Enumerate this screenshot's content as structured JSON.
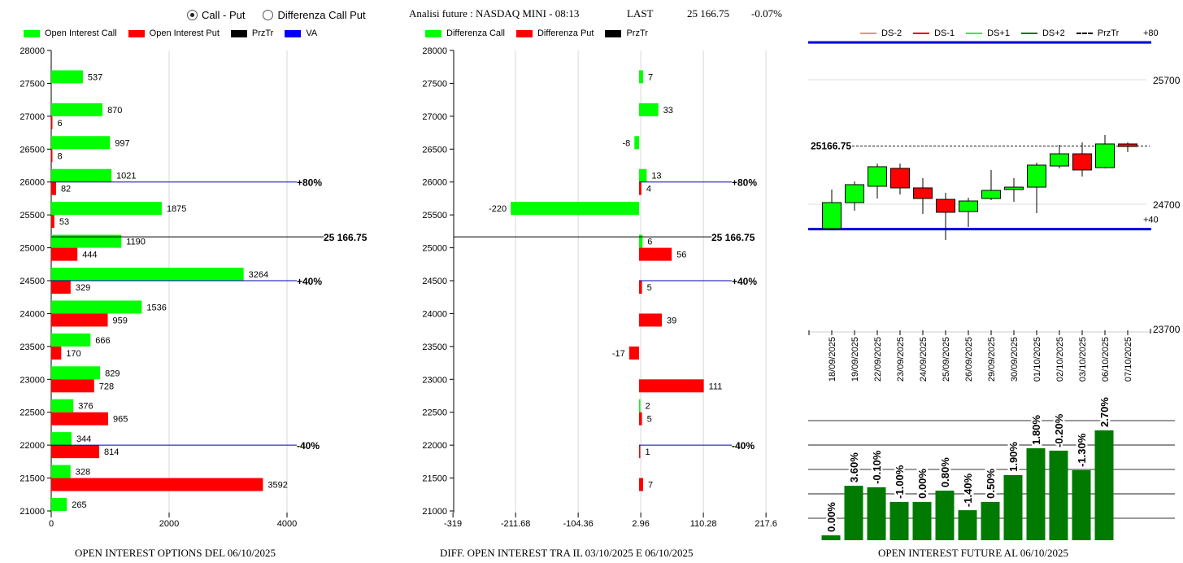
{
  "header": {
    "radio_options": [
      {
        "label": "Call - Put",
        "selected": true
      },
      {
        "label": "Differenza Call Put",
        "selected": false
      }
    ],
    "title": "Analisi future : NASDAQ MINI - 08:13",
    "last_label": "LAST",
    "last_value": "25 166.75",
    "change": "-0.07%"
  },
  "colors": {
    "call": "#00ff00",
    "put": "#ff0000",
    "prztr": "#000000",
    "va": "#0000ff",
    "candle_up": "#00ff00",
    "candle_down": "#ff0000",
    "oi_bar": "#007a00"
  },
  "legends": {
    "left": [
      "Open Interest Call",
      "Open Interest Put",
      "PrzTr",
      "VA"
    ],
    "middle": [
      "Differenza Call",
      "Differenza Put",
      "PrzTr"
    ],
    "right": [
      "DS-2",
      "DS-1",
      "DS+1",
      "DS+2",
      "PrzTr"
    ]
  },
  "chart_data": [
    {
      "type": "bar",
      "orientation": "horizontal",
      "title": "OPEN INTEREST OPTIONS DEL 06/10/2025",
      "y_ticks": [
        "28000",
        "27500",
        "27000",
        "26500",
        "26000",
        "25500",
        "25000",
        "24500",
        "24000",
        "23500",
        "23000",
        "22500",
        "22000",
        "21500",
        "21000"
      ],
      "x_ticks": [
        "0",
        "2000",
        "4000"
      ],
      "xlim": [
        0,
        4600
      ],
      "ylim": [
        21000,
        28000
      ],
      "grid": "vertical",
      "strikes": [
        27500,
        27000,
        26500,
        26000,
        25500,
        25000,
        24500,
        24000,
        23500,
        23000,
        22500,
        22000,
        21500,
        21000
      ],
      "series": [
        {
          "name": "Open Interest Call",
          "values": [
            537,
            870,
            997,
            1021,
            1875,
            1190,
            3264,
            1536,
            666,
            829,
            376,
            344,
            328,
            265
          ]
        },
        {
          "name": "Open Interest Put",
          "values": [
            null,
            6,
            8,
            82,
            53,
            444,
            329,
            959,
            170,
            728,
            965,
            814,
            3592,
            null
          ]
        }
      ],
      "prztr": {
        "price": 25166.75,
        "label": "25 166.75"
      },
      "va_lines": [
        {
          "price": 26000,
          "label": "+80%"
        },
        {
          "price": 24500,
          "label": "+40%"
        },
        {
          "price": 22000,
          "label": "-40%"
        }
      ]
    },
    {
      "type": "bar",
      "orientation": "horizontal",
      "title": "DIFF. OPEN INTEREST TRA IL 03/10/2025 E 06/10/2025",
      "y_ticks": [
        "28000",
        "27500",
        "27000",
        "26500",
        "26000",
        "25500",
        "25000",
        "24500",
        "24000",
        "23500",
        "23000",
        "22500",
        "22000",
        "21500",
        "21000"
      ],
      "x_ticks": [
        "-319",
        "-211.68",
        "-104.36",
        "2.96",
        "110.28",
        "217.6"
      ],
      "xlim": [
        -319,
        235
      ],
      "ylim": [
        21000,
        28000
      ],
      "grid": "vertical",
      "strikes": [
        27500,
        27000,
        26500,
        26000,
        25500,
        25000,
        24500,
        24000,
        23500,
        23000,
        22500,
        22000,
        21500,
        21000
      ],
      "series": [
        {
          "name": "Differenza Call",
          "values": [
            7,
            33,
            -8,
            13,
            -220,
            6,
            null,
            null,
            null,
            null,
            2,
            null,
            null,
            null
          ]
        },
        {
          "name": "Differenza Put",
          "values": [
            null,
            null,
            null,
            4,
            null,
            56,
            5,
            39,
            -17,
            111,
            5,
            1,
            7,
            null
          ]
        }
      ],
      "prztr": {
        "price": 25166.75,
        "label": "25 166.75"
      },
      "va_lines": [
        {
          "price": 26000,
          "label": "+80%"
        },
        {
          "price": 24500,
          "label": "+40%"
        },
        {
          "price": 22000,
          "label": "-40%"
        }
      ]
    },
    {
      "type": "candlestick",
      "y_ticks": [
        "25700",
        "24700",
        "23700"
      ],
      "ylim": [
        23700,
        26050
      ],
      "dates": [
        "18/09/2025",
        "19/09/2025",
        "22/09/2025",
        "23/09/2025",
        "24/09/2025",
        "25/09/2025",
        "26/09/2025",
        "29/09/2025",
        "30/09/2025",
        "01/10/2025",
        "02/10/2025",
        "03/10/2025",
        "06/10/2025",
        "07/10/2025"
      ],
      "ohlc": [
        [
          24504,
          24818,
          24504,
          24713
        ],
        [
          24713,
          24883,
          24648,
          24857
        ],
        [
          24844,
          25027,
          24746,
          25001
        ],
        [
          24988,
          25027,
          24778,
          24831
        ],
        [
          24831,
          24909,
          24622,
          24746
        ],
        [
          24739,
          24792,
          24412,
          24635
        ],
        [
          24641,
          24752,
          24517,
          24726
        ],
        [
          24746,
          24975,
          24733,
          24811
        ],
        [
          24818,
          24909,
          24720,
          24837
        ],
        [
          24837,
          25034,
          24628,
          25014
        ],
        [
          25007,
          25177,
          24988,
          25105
        ],
        [
          25105,
          25197,
          24922,
          24975
        ],
        [
          24994,
          25256,
          24988,
          25184
        ],
        [
          25184,
          25197,
          25119,
          25164
        ]
      ],
      "prztr": {
        "price": 25166.75,
        "label": "25166.75"
      },
      "va_lines": [
        {
          "price": 26000,
          "label": "+80"
        },
        {
          "price": 24500,
          "label": "+40"
        }
      ]
    },
    {
      "type": "bar",
      "title": "OPEN INTEREST FUTURE AL 06/10/2025",
      "categories": [
        "18/09/2025",
        "19/09/2025",
        "22/09/2025",
        "23/09/2025",
        "24/09/2025",
        "25/09/2025",
        "26/09/2025",
        "29/09/2025",
        "30/09/2025",
        "01/10/2025",
        "02/10/2025",
        "03/10/2025",
        "06/10/2025"
      ],
      "relative_values": [
        0.2,
        2.23,
        2.17,
        1.57,
        1.57,
        2.03,
        1.23,
        1.57,
        2.67,
        3.77,
        3.67,
        2.87,
        4.5
      ],
      "data_labels": [
        "0.00%",
        "3.60%",
        "-0.10%",
        "-1.00%",
        "0.00%",
        "0.80%",
        "-1.40%",
        "0.50%",
        "1.90%",
        "1.80%",
        "-0.20%",
        "-1.30%",
        "2.70%"
      ],
      "grid": "horizontal"
    }
  ]
}
